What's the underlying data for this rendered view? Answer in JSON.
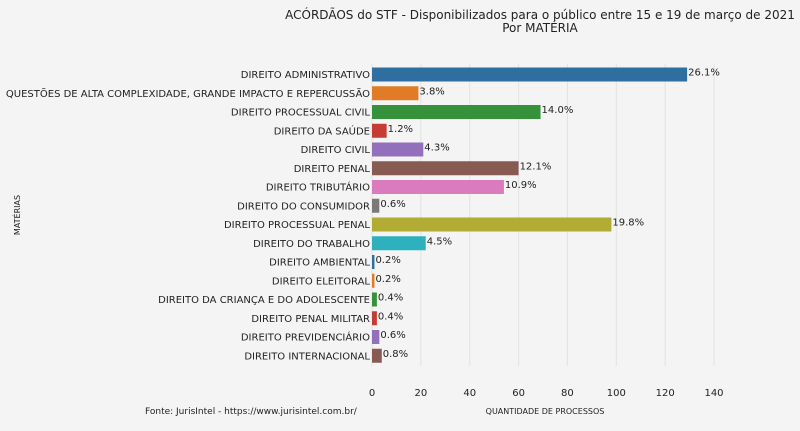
{
  "chart_data": {
    "type": "bar",
    "orientation": "horizontal",
    "title": "ACÓRDÃOS do STF - Disponibilizados para o público entre 15 e 19 de março de 2021",
    "subtitle": "Por MATÉRIA",
    "xlabel": "QUANTIDADE DE PROCESSOS",
    "ylabel": "MATÉRIAS",
    "xlim": [
      0,
      140
    ],
    "xticks": [
      0,
      20,
      40,
      60,
      80,
      100,
      120,
      140
    ],
    "grid": true,
    "categories": [
      "DIREITO ADMINISTRATIVO",
      "QUESTÕES DE ALTA COMPLEXIDADE, GRANDE IMPACTO E REPERCUSSÃO",
      "DIREITO PROCESSUAL CIVIL",
      "DIREITO DA SAÚDE",
      "DIREITO CIVIL",
      "DIREITO PENAL",
      "DIREITO TRIBUTÁRIO",
      "DIREITO DO CONSUMIDOR",
      "DIREITO PROCESSUAL PENAL",
      "DIREITO DO TRABALHO",
      "DIREITO AMBIENTAL",
      "DIREITO ELEITORAL",
      "DIREITO DA CRIANÇA E DO ADOLESCENTE",
      "DIREITO PENAL MILITAR",
      "DIREITO PREVIDENCIÁRIO",
      "DIREITO INTERNACIONAL"
    ],
    "values": [
      129,
      19,
      69,
      6,
      21,
      60,
      54,
      3,
      98,
      22,
      1,
      1,
      2,
      2,
      3,
      4
    ],
    "data_labels": [
      "26.1%",
      "3.8%",
      "14.0%",
      "1.2%",
      "4.3%",
      "12.1%",
      "10.9%",
      "0.6%",
      "19.8%",
      "4.5%",
      "0.2%",
      "0.2%",
      "0.4%",
      "0.4%",
      "0.6%",
      "0.8%"
    ],
    "colors": [
      "#2f6f9f",
      "#e07c25",
      "#36923a",
      "#c73b35",
      "#9370bb",
      "#875a52",
      "#d97bbd",
      "#7a7a7a",
      "#b1ac33",
      "#2fb0bd",
      "#2f6f9f",
      "#e07c25",
      "#36923a",
      "#c73b35",
      "#9370bb",
      "#875a52"
    ]
  },
  "footer": {
    "source": "Fonte: JurisIntel - https://www.jurisintel.com.br/"
  }
}
